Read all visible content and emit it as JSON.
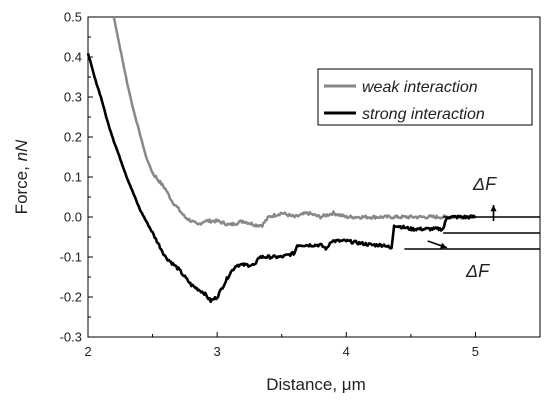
{
  "chart_data": {
    "type": "line",
    "xlabel": "Distance, μm",
    "ylabel_prefix": "Force, ",
    "ylabel_unit": "nN",
    "xlim": [
      2,
      5.5
    ],
    "ylim": [
      -0.3,
      0.5
    ],
    "xticks": [
      2,
      3,
      4,
      5
    ],
    "yticks": [
      0.5,
      0.4,
      0.3,
      0.2,
      0.1,
      0.0,
      -0.1,
      -0.2,
      -0.3
    ],
    "ytick_labels": [
      "0.5",
      "0.4",
      "0.3",
      "0.2",
      "0.1",
      "0.0",
      "-0.1",
      "-0.2",
      "-0.3"
    ],
    "grid": false,
    "legend_position": "top-right",
    "series": [
      {
        "name": "weak interaction",
        "color": "#888888",
        "x": [
          2.2,
          2.25,
          2.3,
          2.35,
          2.4,
          2.45,
          2.5,
          2.55,
          2.6,
          2.65,
          2.7,
          2.75,
          2.8,
          2.85,
          2.9,
          3.0,
          3.1,
          3.2,
          3.3,
          3.35,
          3.4,
          3.5,
          3.6,
          3.7,
          3.8,
          3.9,
          4.0,
          4.2,
          4.4,
          4.6,
          4.8,
          5.0
        ],
        "y": [
          0.5,
          0.42,
          0.34,
          0.27,
          0.21,
          0.15,
          0.11,
          0.09,
          0.07,
          0.04,
          0.02,
          0.0,
          -0.01,
          -0.02,
          -0.01,
          -0.01,
          -0.02,
          -0.01,
          -0.02,
          -0.02,
          0.0,
          0.01,
          0.0,
          0.01,
          0.0,
          0.01,
          0.0,
          0.0,
          0.0,
          0.0,
          0.0,
          0.0
        ]
      },
      {
        "name": "strong interaction",
        "color": "#000000",
        "x": [
          2.0,
          2.05,
          2.1,
          2.15,
          2.2,
          2.3,
          2.4,
          2.5,
          2.6,
          2.7,
          2.8,
          2.9,
          2.95,
          3.0,
          3.05,
          3.1,
          3.15,
          3.3,
          3.32,
          3.5,
          3.6,
          3.62,
          3.8,
          3.85,
          3.88,
          4.0,
          4.2,
          4.3,
          4.35,
          4.37,
          4.5,
          4.7,
          4.75,
          4.78,
          4.85,
          5.0
        ],
        "y": [
          0.41,
          0.35,
          0.3,
          0.24,
          0.19,
          0.1,
          0.02,
          -0.04,
          -0.1,
          -0.13,
          -0.17,
          -0.19,
          -0.21,
          -0.2,
          -0.17,
          -0.14,
          -0.12,
          -0.12,
          -0.1,
          -0.1,
          -0.09,
          -0.07,
          -0.07,
          -0.08,
          -0.06,
          -0.06,
          -0.07,
          -0.07,
          -0.08,
          -0.02,
          -0.03,
          -0.03,
          -0.03,
          0.0,
          0.0,
          0.0
        ]
      }
    ],
    "annotations": [
      {
        "label": "ΔF",
        "reference_lines": [
          0.0,
          -0.04
        ],
        "x_start": 4.75,
        "x_end": 5.5
      },
      {
        "label": "ΔF",
        "reference_lines": [
          -0.04,
          -0.08
        ],
        "x_start": 4.45,
        "x_end": 5.5
      }
    ]
  }
}
